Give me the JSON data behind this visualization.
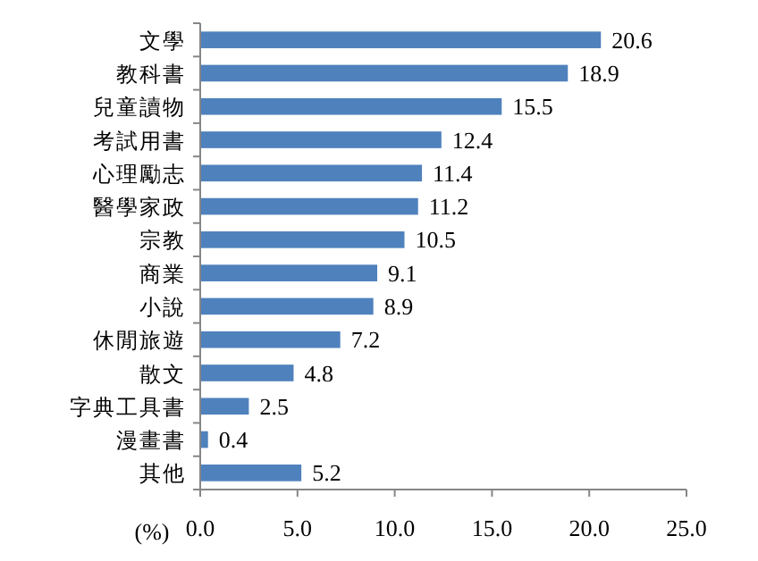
{
  "chart_data": {
    "type": "bar",
    "orientation": "horizontal",
    "xlabel": "(%)",
    "categories": [
      "文學",
      "教科書",
      "兒童讀物",
      "考試用書",
      "心理勵志",
      "醫學家政",
      "宗教",
      "商業",
      "小說",
      "休閒旅遊",
      "散文",
      "字典工具書",
      "漫畫書",
      "其他"
    ],
    "values": [
      20.6,
      18.9,
      15.5,
      12.4,
      11.4,
      11.2,
      10.5,
      9.1,
      8.9,
      7.2,
      4.8,
      2.5,
      0.4,
      5.2
    ],
    "color": "#4f81bd",
    "data_labels": true,
    "grid": false,
    "xlim": [
      0,
      25
    ],
    "xticks": [
      {
        "value": 0,
        "label": "0.0"
      },
      {
        "value": 5,
        "label": "5.0"
      },
      {
        "value": 10,
        "label": "10.0"
      },
      {
        "value": 15,
        "label": "15.0"
      },
      {
        "value": 20,
        "label": "20.0"
      },
      {
        "value": 25,
        "label": "25.0"
      }
    ]
  }
}
